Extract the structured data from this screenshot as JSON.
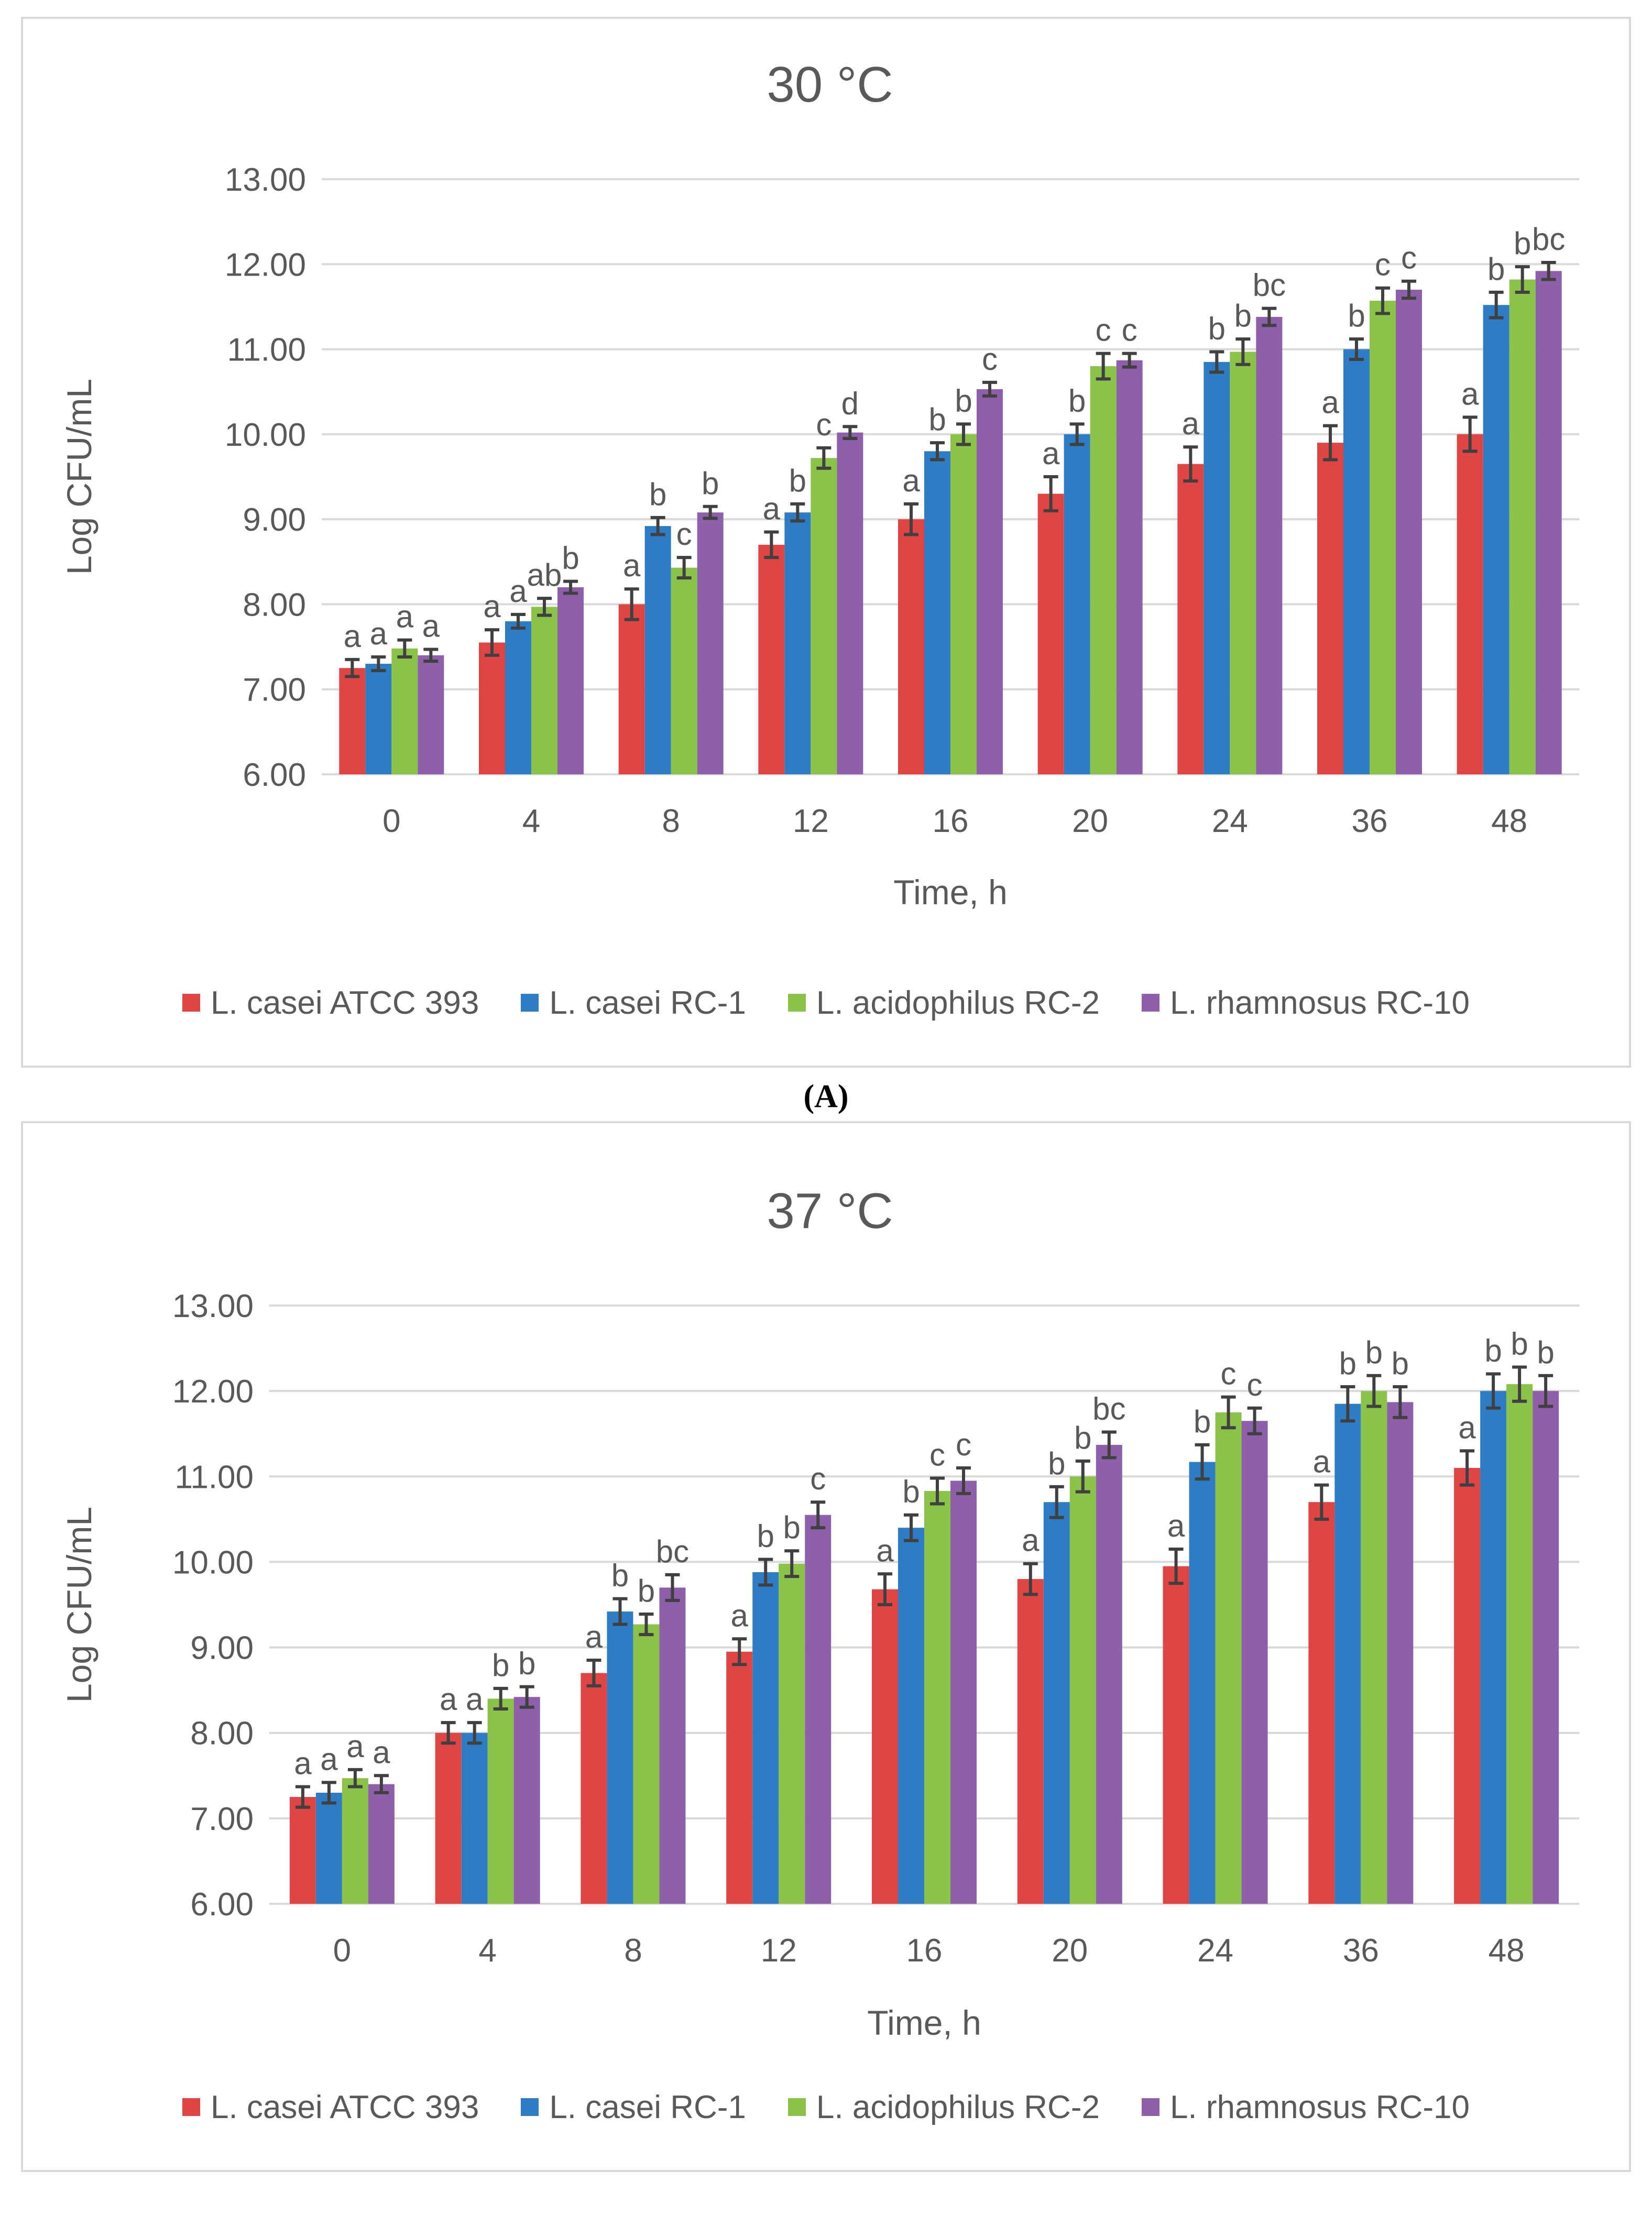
{
  "caption": "(A)",
  "legend": [
    {
      "name": "L. casei ATCC 393",
      "color": "#e04545"
    },
    {
      "name": "L. casei RC-1",
      "color": "#2e7dc4"
    },
    {
      "name": "L. acidophilus RC-2",
      "color": "#8bc34a"
    },
    {
      "name": "L. rhamnosus RC-10",
      "color": "#8e60aa"
    }
  ],
  "chart_data": [
    {
      "type": "bar",
      "title": "30 °C",
      "xlabel": "Time, h",
      "ylabel": "Log CFU/mL",
      "ylim": [
        6,
        13
      ],
      "yticks": [
        "6.00",
        "7.00",
        "8.00",
        "9.00",
        "10.00",
        "11.00",
        "12.00",
        "13.00"
      ],
      "grid": true,
      "legend_position": "bottom",
      "categories": [
        "0",
        "4",
        "8",
        "12",
        "16",
        "20",
        "24",
        "36",
        "48"
      ],
      "series": [
        {
          "name": "L. casei ATCC 393",
          "color": "#e04545",
          "values": [
            7.25,
            7.55,
            8.0,
            8.7,
            9.0,
            9.3,
            9.65,
            9.9,
            10.0
          ],
          "errors": [
            0.1,
            0.15,
            0.18,
            0.15,
            0.18,
            0.2,
            0.2,
            0.2,
            0.2
          ],
          "letters": [
            "a",
            "a",
            "a",
            "a",
            "a",
            "a",
            "a",
            "a",
            "a"
          ]
        },
        {
          "name": "L. casei RC-1",
          "color": "#2e7dc4",
          "values": [
            7.3,
            7.8,
            8.92,
            9.08,
            9.8,
            10.0,
            10.85,
            11.0,
            11.52
          ],
          "errors": [
            0.08,
            0.08,
            0.1,
            0.1,
            0.1,
            0.12,
            0.12,
            0.12,
            0.15
          ],
          "letters": [
            "a",
            "a",
            "b",
            "b",
            "b",
            "b",
            "b",
            "b",
            "b"
          ]
        },
        {
          "name": "L. acidophilus RC-2",
          "color": "#8bc34a",
          "values": [
            7.48,
            7.97,
            8.43,
            9.72,
            10.0,
            10.8,
            10.97,
            11.57,
            11.82
          ],
          "errors": [
            0.1,
            0.1,
            0.12,
            0.12,
            0.12,
            0.15,
            0.15,
            0.15,
            0.15
          ],
          "letters": [
            "a",
            "ab",
            "c",
            "c",
            "b",
            "c",
            "b",
            "c",
            "b"
          ]
        },
        {
          "name": "L. rhamnosus RC-10",
          "color": "#8e60aa",
          "values": [
            7.4,
            8.2,
            9.08,
            10.02,
            10.53,
            10.87,
            11.38,
            11.7,
            11.92
          ],
          "errors": [
            0.07,
            0.07,
            0.07,
            0.07,
            0.08,
            0.08,
            0.1,
            0.1,
            0.1
          ],
          "letters": [
            "a",
            "b",
            "b",
            "d",
            "c",
            "c",
            "bc",
            "c",
            "bc"
          ]
        }
      ]
    },
    {
      "type": "bar",
      "title": "37 °C",
      "xlabel": "Time, h",
      "ylabel": "Log CFU/mL",
      "ylim": [
        6,
        13
      ],
      "yticks": [
        "6.00",
        "7.00",
        "8.00",
        "9.00",
        "10.00",
        "11.00",
        "12.00",
        "13.00"
      ],
      "grid": true,
      "legend_position": "bottom",
      "categories": [
        "0",
        "4",
        "8",
        "12",
        "16",
        "20",
        "24",
        "36",
        "48"
      ],
      "series": [
        {
          "name": "L. casei ATCC 393",
          "color": "#e04545",
          "values": [
            7.25,
            8.0,
            8.7,
            8.95,
            9.68,
            9.8,
            9.95,
            10.7,
            11.1
          ],
          "errors": [
            0.12,
            0.12,
            0.15,
            0.15,
            0.18,
            0.18,
            0.2,
            0.2,
            0.2
          ],
          "letters": [
            "a",
            "a",
            "a",
            "a",
            "a",
            "a",
            "a",
            "a",
            "a"
          ]
        },
        {
          "name": "L. casei RC-1",
          "color": "#2e7dc4",
          "values": [
            7.3,
            8.0,
            9.42,
            9.88,
            10.4,
            10.7,
            11.17,
            11.85,
            12.0
          ],
          "errors": [
            0.12,
            0.12,
            0.15,
            0.15,
            0.15,
            0.18,
            0.2,
            0.2,
            0.2
          ],
          "letters": [
            "a",
            "a",
            "b",
            "b",
            "b",
            "b",
            "b",
            "b",
            "b"
          ]
        },
        {
          "name": "L. acidophilus RC-2",
          "color": "#8bc34a",
          "values": [
            7.47,
            8.4,
            9.27,
            9.98,
            10.83,
            11.0,
            11.75,
            12.0,
            12.08
          ],
          "errors": [
            0.1,
            0.12,
            0.12,
            0.15,
            0.15,
            0.18,
            0.18,
            0.18,
            0.2
          ],
          "letters": [
            "a",
            "b",
            "b",
            "b",
            "c",
            "b",
            "c",
            "b",
            "b"
          ]
        },
        {
          "name": "L. rhamnosus RC-10",
          "color": "#8e60aa",
          "values": [
            7.4,
            8.42,
            9.7,
            10.55,
            10.95,
            11.37,
            11.65,
            11.87,
            12.0
          ],
          "errors": [
            0.1,
            0.12,
            0.15,
            0.15,
            0.15,
            0.15,
            0.15,
            0.18,
            0.18
          ],
          "letters": [
            "a",
            "b",
            "bc",
            "c",
            "c",
            "bc",
            "c",
            "b",
            "b"
          ]
        }
      ]
    }
  ]
}
